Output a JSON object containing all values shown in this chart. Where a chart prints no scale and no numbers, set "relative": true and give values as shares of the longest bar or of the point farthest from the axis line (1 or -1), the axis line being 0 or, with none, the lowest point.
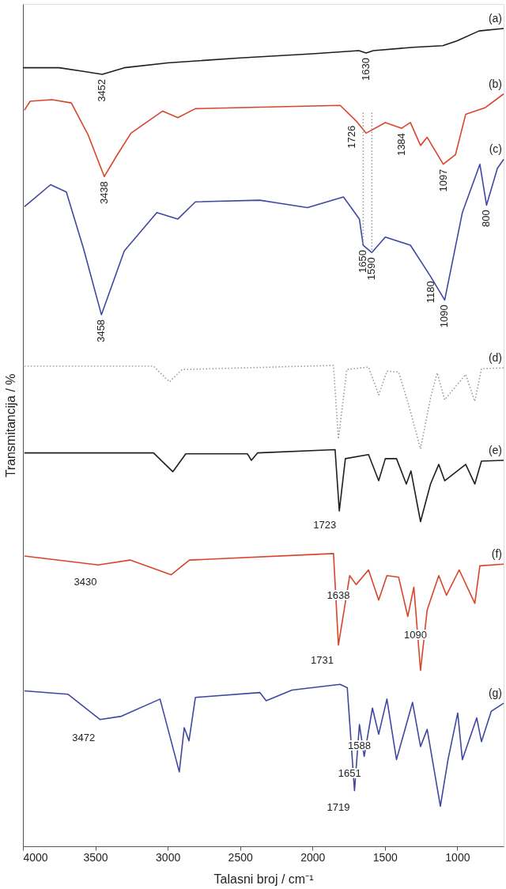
{
  "chart_data": {
    "type": "line",
    "relative": true,
    "xlabel": "Talasni broj / cm⁻¹",
    "ylabel": "Transmitancija / %",
    "xlim": [
      4000,
      680
    ],
    "xticks": [
      4000,
      3500,
      3000,
      2500,
      2000,
      1500,
      1000
    ],
    "grid": false,
    "legend": false,
    "marker": "none",
    "series": [
      {
        "name": "(a)",
        "color": "#1f1f1f",
        "line_style": "solid",
        "x": [
          4000,
          3750,
          3600,
          3452,
          3300,
          3000,
          2500,
          2000,
          1680,
          1630,
          1580,
          1300,
          1100,
          1000,
          850,
          680
        ],
        "values": [
          0.952,
          0.952,
          0.948,
          0.944,
          0.952,
          0.958,
          0.964,
          0.969,
          0.973,
          0.97,
          0.973,
          0.977,
          0.979,
          0.985,
          0.997,
          1.0
        ]
      },
      {
        "name": "(b)",
        "color": "#d9442b",
        "line_style": "solid",
        "x": [
          3990,
          3950,
          3800,
          3666,
          3550,
          3438,
          3350,
          3254,
          3035,
          2930,
          2809,
          2300,
          1809,
          1699,
          1630,
          1497,
          1384,
          1324,
          1254,
          1208,
          1097,
          1012,
          942,
          809,
          680
        ],
        "values": [
          0.9,
          0.911,
          0.913,
          0.909,
          0.87,
          0.819,
          0.845,
          0.872,
          0.899,
          0.891,
          0.902,
          0.904,
          0.906,
          0.887,
          0.872,
          0.885,
          0.878,
          0.885,
          0.857,
          0.867,
          0.834,
          0.846,
          0.895,
          0.903,
          0.92
        ]
      },
      {
        "name": "(c)",
        "color": "#3f48a0",
        "line_style": "solid",
        "x": [
          3990,
          3809,
          3700,
          3580,
          3458,
          3300,
          3075,
          2930,
          2809,
          2364,
          2035,
          1786,
          1676,
          1650,
          1590,
          1497,
          1324,
          1185,
          1087,
          965,
          844,
          798,
          723,
          680
        ],
        "values": [
          0.782,
          0.809,
          0.8,
          0.73,
          0.65,
          0.728,
          0.775,
          0.767,
          0.788,
          0.79,
          0.781,
          0.794,
          0.767,
          0.735,
          0.726,
          0.745,
          0.735,
          0.697,
          0.668,
          0.775,
          0.834,
          0.784,
          0.829,
          0.84
        ]
      },
      {
        "name": "(d)",
        "color": "#9a9a9a",
        "line_style": "dotted",
        "x": [
          3990,
          3098,
          2988,
          2900,
          1855,
          1821,
          1763,
          1613,
          1543,
          1486,
          1405,
          1330,
          1254,
          1185,
          1139,
          1087,
          942,
          879,
          833,
          680
        ],
        "values": [
          0.587,
          0.587,
          0.568,
          0.583,
          0.588,
          0.498,
          0.583,
          0.586,
          0.552,
          0.581,
          0.58,
          0.536,
          0.486,
          0.548,
          0.579,
          0.546,
          0.577,
          0.544,
          0.584,
          0.585
        ]
      },
      {
        "name": "(e)",
        "color": "#1f1f1f",
        "line_style": "solid",
        "x": [
          3990,
          3098,
          2965,
          2875,
          2450,
          2422,
          2380,
          1844,
          1815,
          1773,
          1613,
          1543,
          1497,
          1420,
          1352,
          1320,
          1254,
          1185,
          1128,
          1087,
          942,
          879,
          833,
          680
        ],
        "values": [
          0.481,
          0.481,
          0.458,
          0.48,
          0.48,
          0.472,
          0.481,
          0.485,
          0.41,
          0.474,
          0.479,
          0.447,
          0.474,
          0.474,
          0.443,
          0.459,
          0.397,
          0.443,
          0.467,
          0.447,
          0.467,
          0.443,
          0.471,
          0.472
        ]
      },
      {
        "name": "(f)",
        "color": "#d9442b",
        "line_style": "solid",
        "x": [
          3990,
          3480,
          3260,
          2976,
          2850,
          1855,
          1821,
          1743,
          1699,
          1613,
          1543,
          1486,
          1405,
          1342,
          1300,
          1254,
          1208,
          1128,
          1075,
          987,
          879,
          844,
          680
        ],
        "values": [
          0.355,
          0.344,
          0.35,
          0.332,
          0.35,
          0.358,
          0.246,
          0.331,
          0.32,
          0.338,
          0.301,
          0.331,
          0.329,
          0.281,
          0.317,
          0.215,
          0.289,
          0.331,
          0.307,
          0.338,
          0.297,
          0.343,
          0.345
        ]
      },
      {
        "name": "(g)",
        "color": "#3f48a0",
        "line_style": "solid",
        "x": [
          3990,
          3690,
          3468,
          3320,
          3053,
          2920,
          2886,
          2853,
          2809,
          2364,
          2320,
          2142,
          1810,
          1760,
          1710,
          1676,
          1643,
          1586,
          1543,
          1486,
          1420,
          1309,
          1254,
          1208,
          1117,
          1064,
          997,
          965,
          866,
          833,
          766,
          680
        ],
        "values": [
          0.19,
          0.186,
          0.155,
          0.159,
          0.18,
          0.091,
          0.145,
          0.129,
          0.182,
          0.188,
          0.178,
          0.191,
          0.198,
          0.194,
          0.068,
          0.149,
          0.11,
          0.169,
          0.137,
          0.18,
          0.106,
          0.176,
          0.122,
          0.143,
          0.049,
          0.106,
          0.163,
          0.106,
          0.157,
          0.128,
          0.165,
          0.175
        ]
      },
      {
        "color": "#9a9a9a",
        "line_style": "dotted",
        "x": [
          1650,
          1650
        ],
        "values": [
          0.897,
          0.735
        ]
      },
      {
        "color": "#9a9a9a",
        "line_style": "dotted",
        "x": [
          1590,
          1590
        ],
        "values": [
          0.897,
          0.726
        ]
      }
    ],
    "annotations": [
      {
        "text": "3452",
        "x": 3452,
        "y": 0.944
      },
      {
        "text": "1630",
        "x": 1630,
        "y": 0.97
      },
      {
        "text": "3438",
        "x": 3438,
        "y": 0.819
      },
      {
        "text": "1726",
        "x": 1726,
        "y": 0.887
      },
      {
        "text": "1384",
        "x": 1384,
        "y": 0.878
      },
      {
        "text": "1097",
        "x": 1097,
        "y": 0.834
      },
      {
        "text": "3458",
        "x": 3458,
        "y": 0.65
      },
      {
        "text": "1650",
        "x": 1650,
        "y": 0.735
      },
      {
        "text": "1590",
        "x": 1590,
        "y": 0.726
      },
      {
        "text": "1180",
        "x": 1180,
        "y": 0.697
      },
      {
        "text": "1090",
        "x": 1090,
        "y": 0.668
      },
      {
        "text": "800",
        "x": 800,
        "y": 0.784
      },
      {
        "text": "1723",
        "x": 1815,
        "y": 0.41
      },
      {
        "text": "3430",
        "x": 3468,
        "y": 0.34
      },
      {
        "text": "1638",
        "x": 1721,
        "y": 0.324
      },
      {
        "text": "1731",
        "x": 1832,
        "y": 0.245
      },
      {
        "text": "1090",
        "x": 1188,
        "y": 0.276
      },
      {
        "text": "3472",
        "x": 3480,
        "y": 0.15
      },
      {
        "text": "1651",
        "x": 1643,
        "y": 0.106
      },
      {
        "text": "1588",
        "x": 1576,
        "y": 0.14
      },
      {
        "text": "1719",
        "x": 1721,
        "y": 0.065
      }
    ]
  }
}
